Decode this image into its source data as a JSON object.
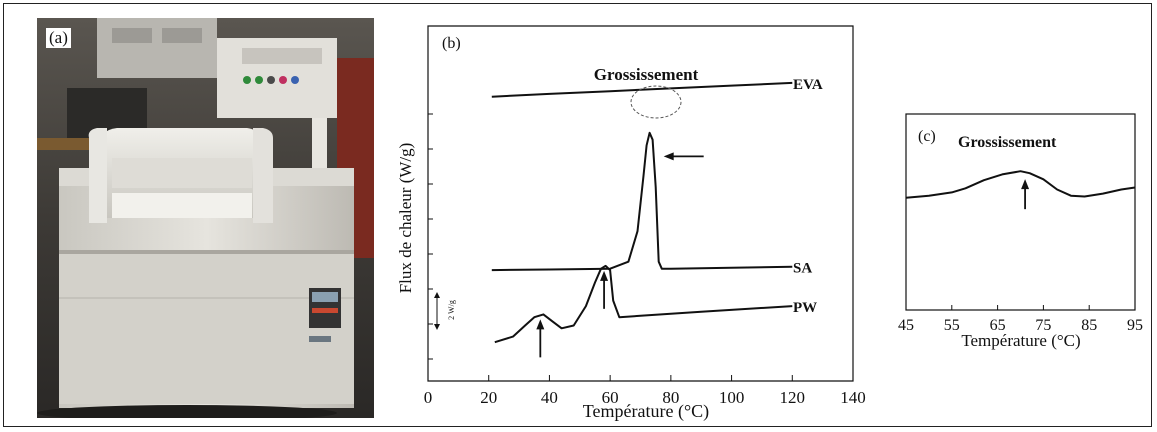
{
  "panel_a": {
    "label": "(a)"
  },
  "chart_data": [
    {
      "type": "line",
      "panel_label": "(b)",
      "xlabel": "Température (°C)",
      "ylabel": "Flux de chaleur (W/g)",
      "xlim": [
        0,
        140
      ],
      "xticks": [
        0,
        20,
        40,
        60,
        80,
        100,
        120,
        140
      ],
      "annotation": "Grossissement",
      "scale_bar_label": "2 W/g",
      "series": [
        {
          "name": "EVA",
          "x": [
            21,
            40,
            60,
            70,
            80,
            100,
            120
          ],
          "y": [
            7.25,
            7.35,
            7.45,
            7.5,
            7.55,
            7.65,
            7.75
          ]
        },
        {
          "name": "SA",
          "x": [
            21,
            40,
            60,
            66,
            69,
            71,
            72,
            73,
            74,
            75,
            76,
            77,
            80,
            100,
            120
          ],
          "y": [
            1.0,
            1.02,
            1.05,
            1.3,
            2.4,
            4.4,
            5.5,
            5.95,
            5.7,
            4.0,
            1.3,
            1.05,
            1.05,
            1.08,
            1.12
          ]
        },
        {
          "name": "PW",
          "x": [
            22,
            28,
            32,
            35,
            38,
            41,
            44,
            48,
            52,
            55,
            57,
            58.5,
            60,
            61,
            63,
            70,
            90,
            120
          ],
          "y": [
            -1.6,
            -1.4,
            -1.0,
            -0.7,
            -0.6,
            -0.85,
            -1.1,
            -1.0,
            -0.3,
            0.55,
            1.05,
            1.15,
            1.0,
            -0.1,
            -0.7,
            -0.65,
            -0.5,
            -0.3
          ]
        }
      ],
      "arrows": [
        {
          "x": 37,
          "direction": "up"
        },
        {
          "x": 58,
          "direction": "up"
        },
        {
          "x": 75,
          "direction": "left"
        }
      ]
    },
    {
      "type": "line",
      "panel_label": "(c)",
      "title": "Grossissement",
      "xlabel": "Température (°C)",
      "xlim": [
        45,
        95
      ],
      "xticks": [
        45,
        55,
        65,
        75,
        85,
        95
      ],
      "series": [
        {
          "name": "",
          "x": [
            45,
            50,
            55,
            58,
            62,
            66,
            70,
            72,
            75,
            78,
            81,
            84,
            88,
            92,
            95
          ],
          "y": [
            0.55,
            0.6,
            0.68,
            0.78,
            0.98,
            1.12,
            1.2,
            1.15,
            1.0,
            0.75,
            0.6,
            0.58,
            0.65,
            0.75,
            0.8
          ]
        }
      ],
      "arrows": [
        {
          "x": 71,
          "direction": "up"
        }
      ]
    }
  ]
}
